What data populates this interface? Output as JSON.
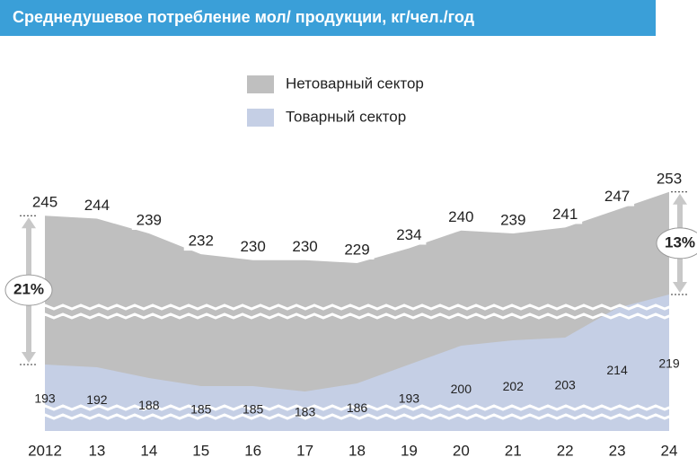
{
  "chart_data": {
    "type": "area",
    "title": "Среднедушевое потребление мол/ продукции, кг/чел./год",
    "categories": [
      "2012",
      "13",
      "14",
      "15",
      "16",
      "17",
      "18",
      "19",
      "20",
      "21",
      "22",
      "23",
      "24"
    ],
    "series": [
      {
        "name": "Нетоварный сектор",
        "color": "#bfbfbf",
        "values": [
          245,
          244,
          239,
          232,
          230,
          230,
          229,
          234,
          240,
          239,
          241,
          247,
          253
        ]
      },
      {
        "name": "Товарный сектор",
        "color": "#c5cfe5",
        "values": [
          193,
          192,
          188,
          185,
          185,
          183,
          186,
          193,
          200,
          202,
          203,
          214,
          219
        ]
      }
    ],
    "annotations": [
      "21%",
      "13%"
    ]
  }
}
